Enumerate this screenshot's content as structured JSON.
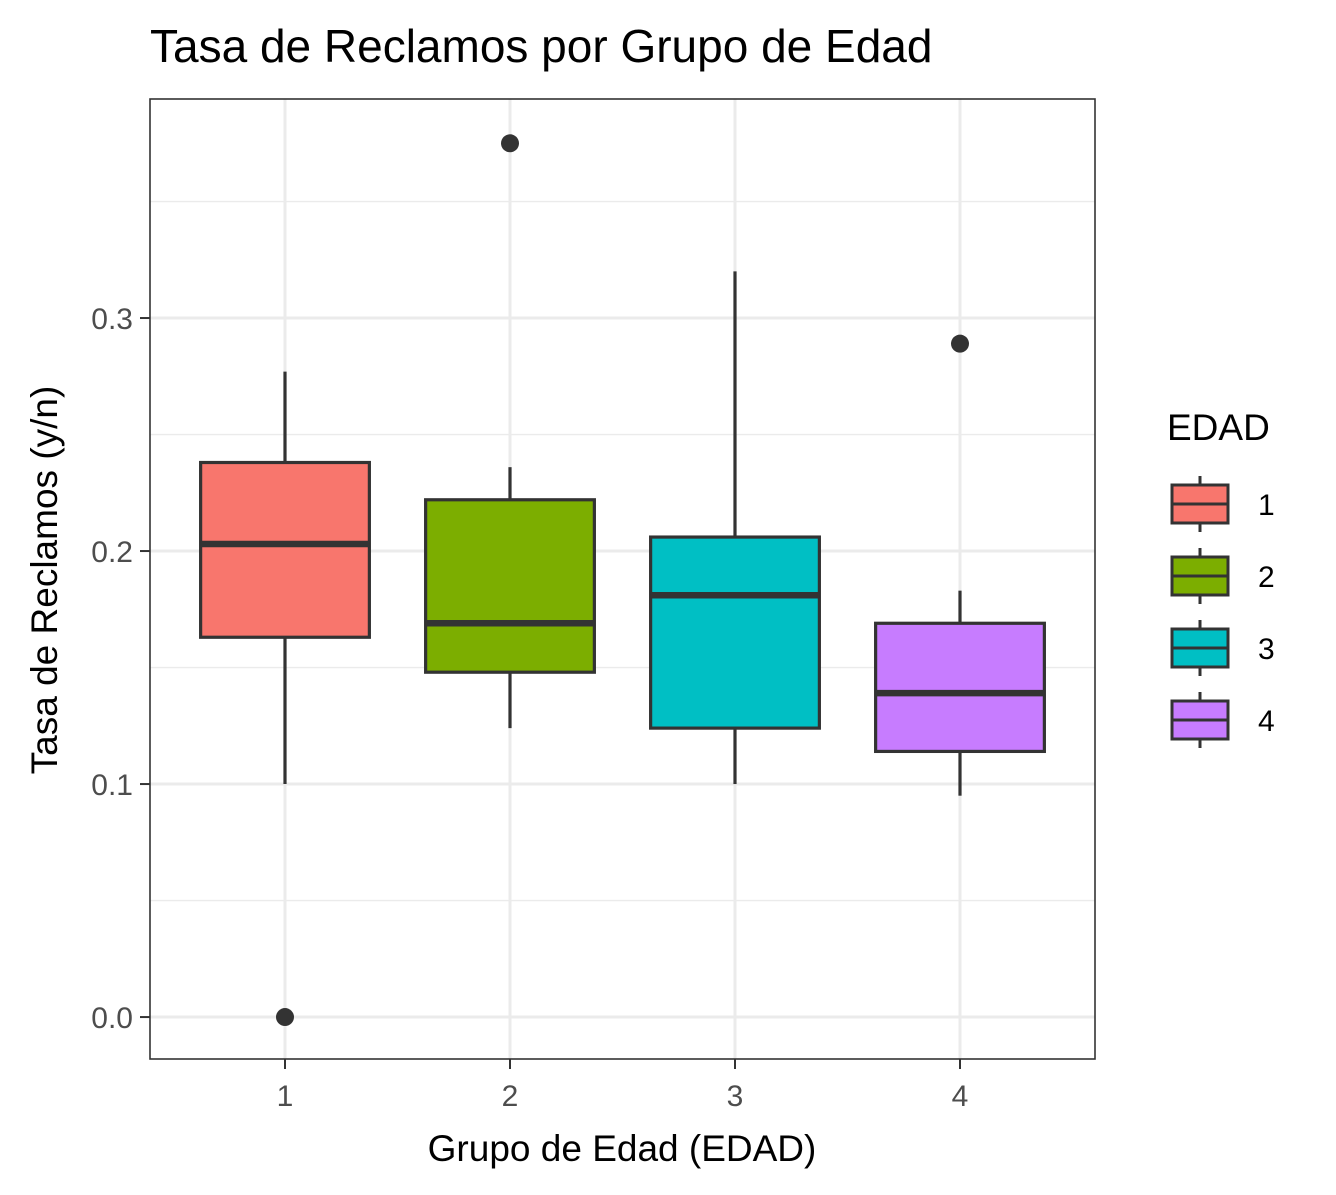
{
  "chart_data": {
    "type": "boxplot",
    "title": "Tasa de Reclamos por Grupo de Edad",
    "xlabel": "Grupo de Edad (EDAD)",
    "ylabel": "Tasa de Reclamos (y/n)",
    "categories": [
      "1",
      "2",
      "3",
      "4"
    ],
    "ylim": [
      -0.018,
      0.394
    ],
    "y_ticks": [
      0.0,
      0.1,
      0.2,
      0.3
    ],
    "y_tick_labels": [
      "0.0",
      "0.1",
      "0.2",
      "0.3"
    ],
    "grid": true,
    "legend": {
      "title": "EDAD",
      "position": "right",
      "entries": [
        "1",
        "2",
        "3",
        "4"
      ]
    },
    "boxes": [
      {
        "category": "1",
        "q1": 0.163,
        "median": 0.203,
        "q3": 0.238,
        "whisker_low": 0.1,
        "whisker_high": 0.277,
        "outliers": [
          0.0
        ],
        "color": "#F8766D"
      },
      {
        "category": "2",
        "q1": 0.148,
        "median": 0.169,
        "q3": 0.222,
        "whisker_low": 0.124,
        "whisker_high": 0.236,
        "outliers": [
          0.375
        ],
        "color": "#7CAE00"
      },
      {
        "category": "3",
        "q1": 0.124,
        "median": 0.181,
        "q3": 0.206,
        "whisker_low": 0.1,
        "whisker_high": 0.32,
        "outliers": [],
        "color": "#00BFC4"
      },
      {
        "category": "4",
        "q1": 0.114,
        "median": 0.139,
        "q3": 0.169,
        "whisker_low": 0.095,
        "whisker_high": 0.183,
        "outliers": [
          0.289
        ],
        "color": "#C77CFF"
      }
    ],
    "colors": {
      "grid": "#EBEBEB",
      "panel_border": "#333333",
      "box_line": "#333333"
    }
  }
}
